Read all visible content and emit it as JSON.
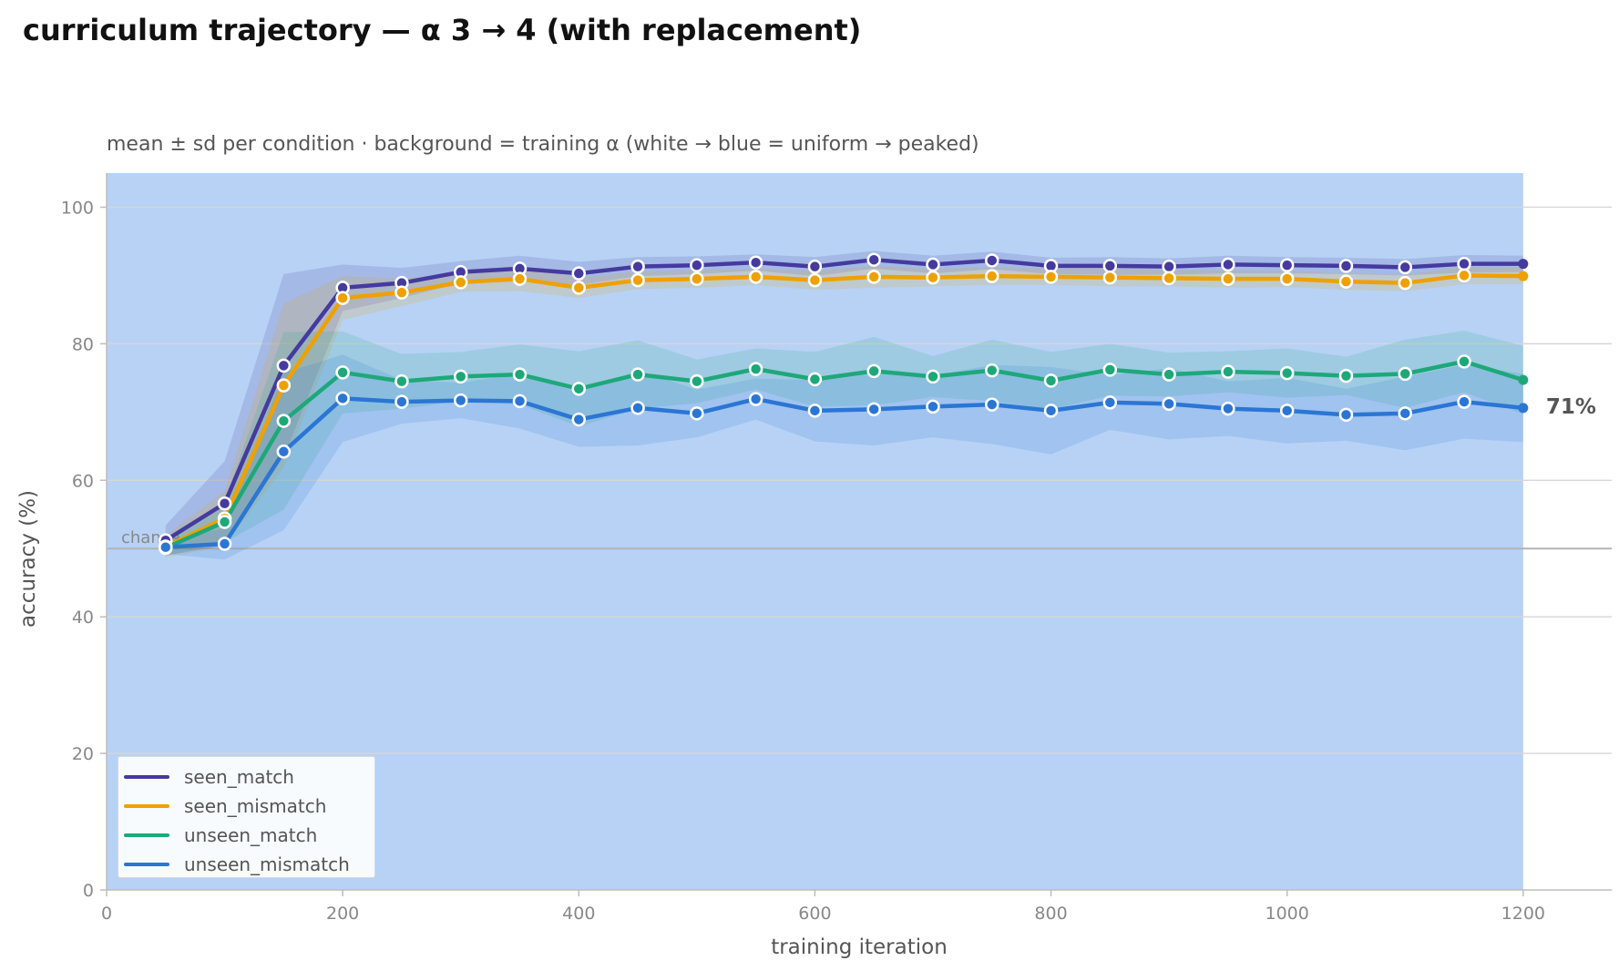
{
  "title": "curriculum trajectory — α 3 → 4 (with replacement)",
  "subtitle": "mean ± sd per condition · background = training α (white → blue = uniform → peaked)",
  "chart_data": {
    "type": "line",
    "xlabel": "training iteration",
    "ylabel": "accuracy (%)",
    "xlim": [
      0,
      1275
    ],
    "ylim": [
      0,
      105
    ],
    "xticks": [
      0,
      200,
      400,
      600,
      800,
      1000,
      1200
    ],
    "yticks": [
      0,
      20,
      40,
      60,
      80,
      100
    ],
    "grid": "horizontal",
    "background_alpha_band": [
      0,
      1200
    ],
    "chance": {
      "label": "chance",
      "y": 50
    },
    "end_label": "71%",
    "legend_position": "bottom-left",
    "x": [
      50,
      100,
      150,
      200,
      250,
      300,
      350,
      400,
      450,
      500,
      550,
      600,
      650,
      700,
      750,
      800,
      850,
      900,
      950,
      1000,
      1050,
      1100,
      1150,
      1200
    ],
    "series": [
      {
        "name": "seen_match",
        "color": "#453a9e",
        "values": [
          51.2,
          56.6,
          76.8,
          88.2,
          88.9,
          90.5,
          91.0,
          90.3,
          91.3,
          91.5,
          91.9,
          91.3,
          92.3,
          91.6,
          92.2,
          91.4,
          91.4,
          91.3,
          91.6,
          91.5,
          91.4,
          91.2,
          91.7,
          91.7
        ],
        "sd": [
          2.2,
          6.2,
          13.4,
          3.4,
          2.2,
          1.6,
          1.9,
          1.7,
          1.4,
          1.3,
          1.2,
          1.4,
          1.3,
          1.3,
          1.3,
          1.2,
          1.3,
          1.2,
          1.3,
          1.2,
          1.2,
          1.2,
          1.3,
          1.2
        ]
      },
      {
        "name": "seen_mismatch",
        "color": "#eea100",
        "values": [
          50.3,
          54.4,
          73.9,
          86.7,
          87.5,
          89.0,
          89.5,
          88.2,
          89.3,
          89.5,
          89.8,
          89.3,
          89.8,
          89.7,
          89.9,
          89.8,
          89.7,
          89.6,
          89.5,
          89.5,
          89.1,
          88.9,
          90.0,
          89.9
        ],
        "sd": [
          1.6,
          4.0,
          12.0,
          3.2,
          2.0,
          1.4,
          1.8,
          1.5,
          1.3,
          1.3,
          1.2,
          1.4,
          1.6,
          1.3,
          1.3,
          1.2,
          1.3,
          1.2,
          1.3,
          1.2,
          1.2,
          1.2,
          1.3,
          1.2
        ]
      },
      {
        "name": "unseen_match",
        "color": "#1ea87a",
        "values": [
          50.1,
          53.9,
          68.7,
          75.8,
          74.5,
          75.2,
          75.5,
          73.4,
          75.5,
          74.5,
          76.3,
          74.8,
          76.0,
          75.2,
          76.1,
          74.6,
          76.2,
          75.5,
          75.9,
          75.7,
          75.3,
          75.6,
          77.4,
          74.7
        ],
        "sd": [
          1.2,
          3.0,
          13.0,
          6.0,
          4.0,
          3.6,
          4.4,
          5.5,
          5.0,
          3.2,
          3.0,
          4.0,
          5.0,
          3.0,
          4.5,
          4.2,
          3.8,
          3.2,
          3.0,
          3.6,
          2.8,
          5.0,
          4.5,
          5.0
        ]
      },
      {
        "name": "unseen_mismatch",
        "color": "#2b76d4",
        "values": [
          50.2,
          50.7,
          64.2,
          72.0,
          71.5,
          71.7,
          71.6,
          68.9,
          70.6,
          69.8,
          71.9,
          70.2,
          70.4,
          70.8,
          71.1,
          70.2,
          71.4,
          71.2,
          70.5,
          70.2,
          69.6,
          69.8,
          71.5,
          70.6
        ],
        "sd": [
          1.0,
          2.3,
          11.5,
          6.4,
          3.2,
          2.6,
          4.0,
          4.0,
          5.5,
          3.5,
          3.0,
          4.5,
          5.3,
          4.5,
          5.8,
          6.4,
          4.0,
          5.2,
          4.0,
          4.8,
          3.8,
          5.4,
          5.4,
          5.0
        ]
      }
    ]
  }
}
